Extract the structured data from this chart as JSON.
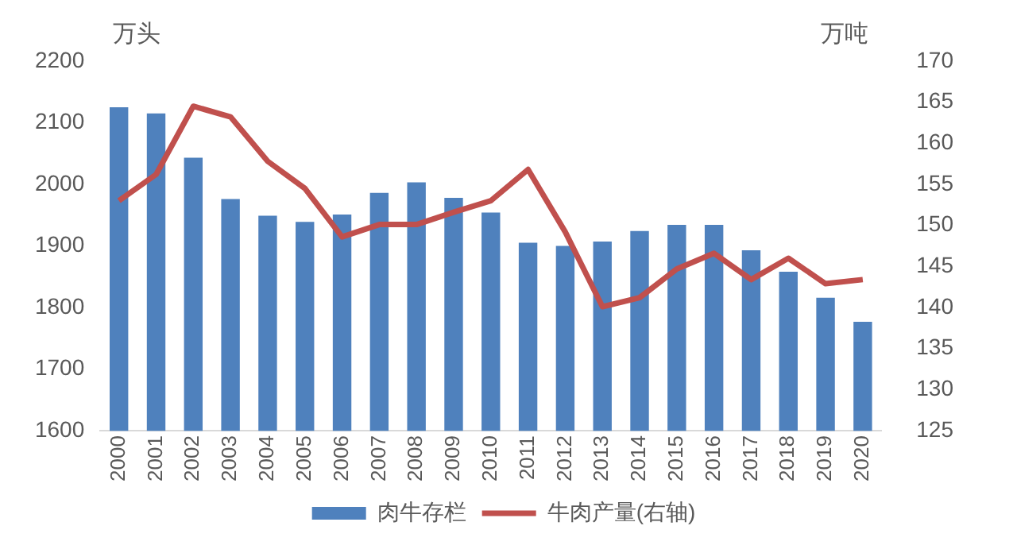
{
  "chart_data": {
    "type": "bar",
    "categories": [
      "2000",
      "2001",
      "2002",
      "2003",
      "2004",
      "2005",
      "2006",
      "2007",
      "2008",
      "2009",
      "2010",
      "2011",
      "2012",
      "2013",
      "2014",
      "2015",
      "2016",
      "2017",
      "2018",
      "2019",
      "2020"
    ],
    "ylabel": "万头",
    "y2label": "万吨",
    "series": [
      {
        "name": "肉牛存栏",
        "color": "#4f81bd",
        "values": [
          2125,
          2115,
          2043,
          1976,
          1949,
          1939,
          1951,
          1986,
          2003,
          1978,
          1954,
          1905,
          1900,
          1907,
          1924,
          1934,
          1934,
          1893,
          1858,
          1816,
          1777
        ]
      },
      {
        "name": "牛肉产量(右轴)",
        "type": "line",
        "axis": "y2",
        "color": "#c0504d",
        "values": [
          153,
          156.2,
          164.5,
          163.2,
          157.8,
          154.5,
          148.6,
          150.1,
          150.1,
          151.6,
          153,
          156.8,
          149.2,
          140.1,
          141.2,
          144.7,
          146.6,
          143.4,
          146,
          142.9,
          143.4
        ]
      }
    ],
    "ylim": [
      1600,
      2200
    ],
    "yticks": [
      1600,
      1700,
      1800,
      1900,
      2000,
      2100,
      2200
    ],
    "y2lim": [
      125,
      170
    ],
    "y2ticks": [
      125,
      130,
      135,
      140,
      145,
      150,
      155,
      160,
      165,
      170
    ],
    "grid": false,
    "legend": "bottom",
    "marker": "none"
  }
}
